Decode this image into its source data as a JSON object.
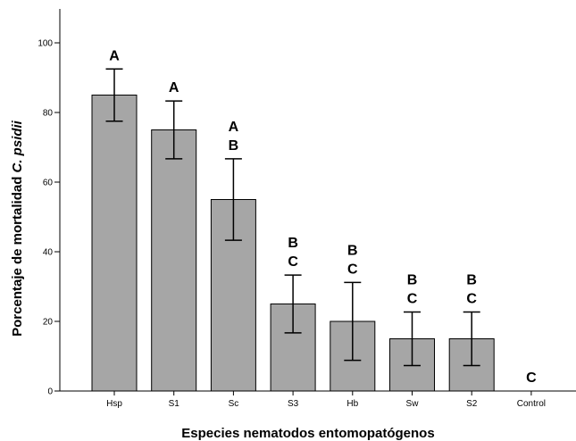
{
  "chart_data": {
    "type": "bar",
    "xlabel": "Especies nematodos entomopatógenos",
    "ylabel": {
      "prefix": "Porcentaje de mortalidad ",
      "italic": "C. psidii"
    },
    "ylim": [
      0,
      100
    ],
    "yticks": [
      0,
      20,
      40,
      60,
      80,
      100
    ],
    "categories": [
      "Hsp",
      "S1",
      "Sc",
      "S3",
      "Hb",
      "Sw",
      "S2",
      "Control"
    ],
    "values": [
      85,
      75,
      55,
      25,
      20,
      15,
      15,
      0
    ],
    "error_high": [
      92.5,
      83.3,
      66.7,
      33.3,
      31.2,
      22.7,
      22.7,
      null
    ],
    "error_low": [
      77.5,
      66.7,
      43.3,
      16.7,
      8.8,
      7.3,
      7.3,
      null
    ],
    "letters": [
      [
        "A"
      ],
      [
        "A"
      ],
      [
        "A",
        "B"
      ],
      [
        "B",
        "C"
      ],
      [
        "B",
        "C"
      ],
      [
        "B",
        "C"
      ],
      [
        "B",
        "C"
      ],
      [
        "C"
      ]
    ],
    "bar_color": "#a6a6a6",
    "grid": false,
    "legend": "none"
  }
}
